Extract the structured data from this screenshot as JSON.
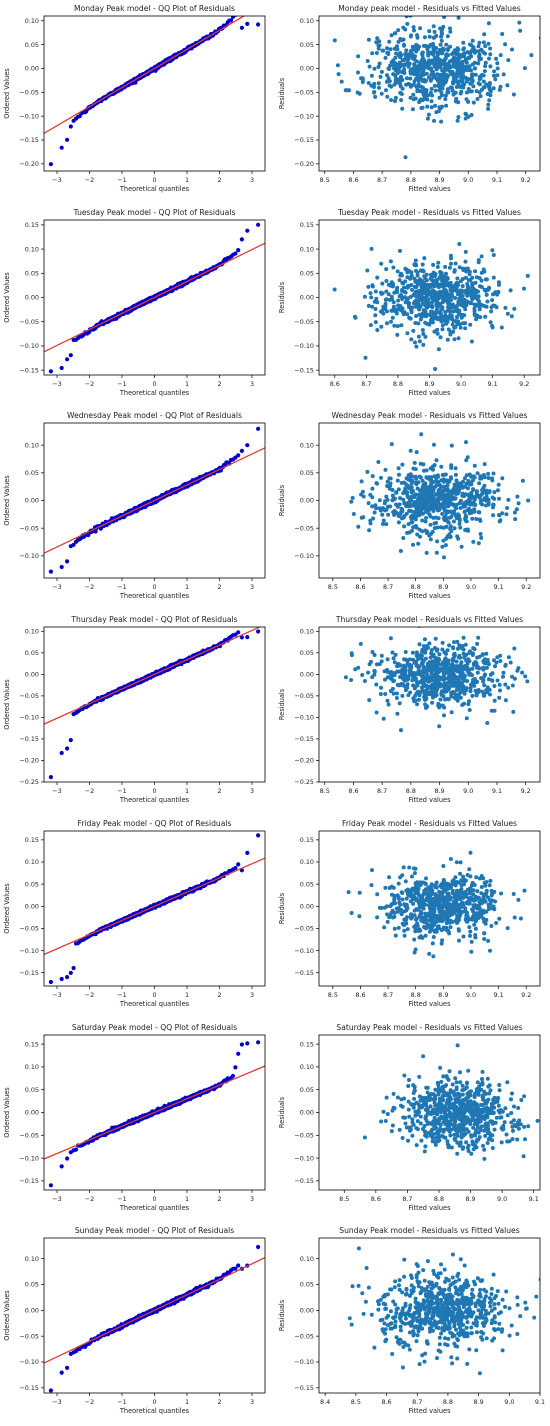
{
  "colors": {
    "qq_points": "#0000cc",
    "qq_line": "#e03c31",
    "scatter_points": "#1f77b4",
    "axis": "#000000"
  },
  "chart_data": [
    {
      "type": "scatter",
      "title": "Monday Peak model - QQ Plot of Residuals",
      "xlabel": "Theoretical quantiles",
      "ylabel": "Ordered Values",
      "xlim": [
        -3.4,
        3.4
      ],
      "ylim": [
        -0.215,
        0.11
      ],
      "xticks": [
        -3,
        -2,
        -1,
        0,
        1,
        2,
        3
      ],
      "yticks": [
        -0.2,
        -0.15,
        -0.1,
        -0.05,
        0.0,
        0.05,
        0.1
      ],
      "xtick_labels": [
        "−3",
        "−2",
        "−1",
        "0",
        "1",
        "2",
        "3"
      ],
      "ytick_labels": [
        "−0.20",
        "−0.15",
        "−0.10",
        "−0.05",
        "0.00",
        "0.05",
        "0.10"
      ],
      "line": {
        "intercept": 0.0,
        "slope": 0.04
      },
      "points_count": 700,
      "std": 0.04,
      "tails": [
        -0.205,
        -0.165,
        -0.15,
        -0.12,
        -0.11,
        0.088,
        0.09,
        0.091
      ]
    },
    {
      "type": "scatter",
      "title": "Monday peak model - Residuals vs Fitted Values",
      "xlabel": "Fitted values",
      "ylabel": "Residuals",
      "xlim": [
        8.48,
        9.25
      ],
      "ylim": [
        -0.215,
        0.11
      ],
      "xticks": [
        8.5,
        8.6,
        8.7,
        8.8,
        8.9,
        9.0,
        9.1,
        9.2
      ],
      "yticks": [
        -0.2,
        -0.15,
        -0.1,
        -0.05,
        0.0,
        0.05,
        0.1
      ],
      "xtick_labels": [
        "8.5",
        "8.6",
        "8.7",
        "8.8",
        "8.9",
        "9.0",
        "9.1",
        "9.2"
      ],
      "ytick_labels": [
        "−0.20",
        "−0.15",
        "−0.10",
        "−0.05",
        "0.00",
        "0.05",
        "0.10"
      ],
      "points_count": 700,
      "x_center": 8.88,
      "x_spread": 0.12,
      "std": 0.04
    },
    {
      "type": "scatter",
      "title": "Tuesday Peak model - QQ Plot of Residuals",
      "xlabel": "Theoretical quantiles",
      "ylabel": "Ordered Values",
      "xlim": [
        -3.4,
        3.4
      ],
      "ylim": [
        -0.16,
        0.16
      ],
      "xticks": [
        -3,
        -2,
        -1,
        0,
        1,
        2,
        3
      ],
      "yticks": [
        -0.15,
        -0.1,
        -0.05,
        0.0,
        0.05,
        0.1,
        0.15
      ],
      "xtick_labels": [
        "−3",
        "−2",
        "−1",
        "0",
        "1",
        "2",
        "3"
      ],
      "ytick_labels": [
        "−0.15",
        "−0.10",
        "−0.05",
        "0.00",
        "0.05",
        "0.10",
        "0.15"
      ],
      "line": {
        "intercept": 0.0,
        "slope": 0.033
      },
      "points_count": 700,
      "std": 0.033,
      "tails": [
        -0.15,
        -0.145,
        -0.13,
        -0.12,
        0.1,
        0.12,
        0.135,
        0.15
      ]
    },
    {
      "type": "scatter",
      "title": "Tuesday Peak model - Residuals vs Fitted Values",
      "xlabel": "Fitted values",
      "ylabel": "Residuals",
      "xlim": [
        8.55,
        9.25
      ],
      "ylim": [
        -0.16,
        0.16
      ],
      "xticks": [
        8.6,
        8.7,
        8.8,
        8.9,
        9.0,
        9.1,
        9.2
      ],
      "yticks": [
        -0.15,
        -0.1,
        -0.05,
        0.0,
        0.05,
        0.1,
        0.15
      ],
      "xtick_labels": [
        "8.6",
        "8.7",
        "8.8",
        "8.9",
        "9.0",
        "9.1",
        "9.2"
      ],
      "ytick_labels": [
        "−0.15",
        "−0.10",
        "−0.05",
        "0.00",
        "0.05",
        "0.10",
        "0.15"
      ],
      "points_count": 700,
      "x_center": 8.92,
      "x_spread": 0.1,
      "std": 0.035
    },
    {
      "type": "scatter",
      "title": "Wednesday Peak model - QQ Plot of Residuals",
      "xlabel": "Theoretical quantiles",
      "ylabel": "Ordered Values",
      "xlim": [
        -3.4,
        3.4
      ],
      "ylim": [
        -0.14,
        0.14
      ],
      "xticks": [
        -3,
        -2,
        -1,
        0,
        1,
        2,
        3
      ],
      "yticks": [
        -0.1,
        -0.05,
        0.0,
        0.05,
        0.1
      ],
      "xtick_labels": [
        "−3",
        "−2",
        "−1",
        "0",
        "1",
        "2",
        "3"
      ],
      "ytick_labels": [
        "−0.10",
        "−0.05",
        "0.00",
        "0.05",
        "0.10"
      ],
      "line": {
        "intercept": 0.0,
        "slope": 0.028
      },
      "points_count": 700,
      "std": 0.028,
      "tails": [
        -0.13,
        -0.12,
        -0.11,
        0.09,
        0.1,
        0.13
      ]
    },
    {
      "type": "scatter",
      "title": "Wednesday Peak model - Residuals vs Fitted Values",
      "xlabel": "Fitted values",
      "ylabel": "Residuals",
      "xlim": [
        8.45,
        9.25
      ],
      "ylim": [
        -0.14,
        0.14
      ],
      "xticks": [
        8.5,
        8.6,
        8.7,
        8.8,
        8.9,
        9.0,
        9.1,
        9.2
      ],
      "yticks": [
        -0.1,
        -0.05,
        0.0,
        0.05,
        0.1
      ],
      "xtick_labels": [
        "8.5",
        "8.6",
        "8.7",
        "8.8",
        "8.9",
        "9.0",
        "9.1",
        "9.2"
      ],
      "ytick_labels": [
        "−0.10",
        "−0.05",
        "0.00",
        "0.05",
        "0.10"
      ],
      "points_count": 700,
      "x_center": 8.88,
      "x_spread": 0.11,
      "std": 0.03
    },
    {
      "type": "scatter",
      "title": "Thursday Peak model - QQ Plot of Residuals",
      "xlabel": "Theoretical quantiles",
      "ylabel": "Ordered Values",
      "xlim": [
        -3.4,
        3.4
      ],
      "ylim": [
        -0.25,
        0.11
      ],
      "xticks": [
        -3,
        -2,
        -1,
        0,
        1,
        2,
        3
      ],
      "yticks": [
        -0.25,
        -0.2,
        -0.15,
        -0.1,
        -0.05,
        0.0,
        0.05,
        0.1
      ],
      "xtick_labels": [
        "−3",
        "−2",
        "−1",
        "0",
        "1",
        "2",
        "3"
      ],
      "ytick_labels": [
        "−0.25",
        "−0.20",
        "−0.15",
        "−0.10",
        "−0.05",
        "0.00",
        "0.05",
        "0.10"
      ],
      "line": {
        "intercept": 0.0,
        "slope": 0.034
      },
      "points_count": 700,
      "std": 0.034,
      "tails": [
        -0.24,
        -0.18,
        -0.17,
        -0.15,
        0.085,
        0.09,
        0.1
      ]
    },
    {
      "type": "scatter",
      "title": "Thursday Peak model - Residuals vs Fitted Values",
      "xlabel": "Fitted values",
      "ylabel": "Residuals",
      "xlim": [
        8.48,
        9.25
      ],
      "ylim": [
        -0.25,
        0.11
      ],
      "xticks": [
        8.5,
        8.6,
        8.7,
        8.8,
        8.9,
        9.0,
        9.1,
        9.2
      ],
      "yticks": [
        -0.25,
        -0.2,
        -0.15,
        -0.1,
        -0.05,
        0.0,
        0.05,
        0.1
      ],
      "xtick_labels": [
        "8.5",
        "8.6",
        "8.7",
        "8.8",
        "8.9",
        "9.0",
        "9.1",
        "9.2"
      ],
      "ytick_labels": [
        "−0.25",
        "−0.20",
        "−0.15",
        "−0.10",
        "−0.05",
        "0.00",
        "0.05",
        "0.10"
      ],
      "points_count": 700,
      "x_center": 8.9,
      "x_spread": 0.11,
      "std": 0.035
    },
    {
      "type": "scatter",
      "title": "Friday Peak model - QQ Plot of Residuals",
      "xlabel": "Theoretical quantiles",
      "ylabel": "Ordered Values",
      "xlim": [
        -3.4,
        3.4
      ],
      "ylim": [
        -0.18,
        0.17
      ],
      "xticks": [
        -3,
        -2,
        -1,
        0,
        1,
        2,
        3
      ],
      "yticks": [
        -0.15,
        -0.1,
        -0.05,
        0.0,
        0.05,
        0.1,
        0.15
      ],
      "xtick_labels": [
        "−3",
        "−2",
        "−1",
        "0",
        "1",
        "2",
        "3"
      ],
      "ytick_labels": [
        "−0.15",
        "−0.10",
        "−0.05",
        "0.00",
        "0.05",
        "0.10",
        "0.15"
      ],
      "line": {
        "intercept": 0.0,
        "slope": 0.032
      },
      "points_count": 700,
      "std": 0.032,
      "tails": [
        -0.17,
        -0.165,
        -0.16,
        -0.15,
        -0.14,
        0.08,
        0.12,
        0.16
      ]
    },
    {
      "type": "scatter",
      "title": "Friday Peak model - Residuals vs Fitted Values",
      "xlabel": "Fitted values",
      "ylabel": "Residuals",
      "xlim": [
        8.45,
        9.25
      ],
      "ylim": [
        -0.18,
        0.17
      ],
      "xticks": [
        8.5,
        8.6,
        8.7,
        8.8,
        8.9,
        9.0,
        9.1,
        9.2
      ],
      "yticks": [
        -0.15,
        -0.1,
        -0.05,
        0.0,
        0.05,
        0.1,
        0.15
      ],
      "xtick_labels": [
        "8.5",
        "8.6",
        "8.7",
        "8.8",
        "8.9",
        "9.0",
        "9.1",
        "9.2"
      ],
      "ytick_labels": [
        "−0.15",
        "−0.10",
        "−0.05",
        "0.00",
        "0.05",
        "0.10",
        "0.15"
      ],
      "points_count": 700,
      "x_center": 8.9,
      "x_spread": 0.1,
      "std": 0.035
    },
    {
      "type": "scatter",
      "title": "Saturday Peak model - QQ Plot of Residuals",
      "xlabel": "Theoretical quantiles",
      "ylabel": "Ordered Values",
      "xlim": [
        -3.4,
        3.4
      ],
      "ylim": [
        -0.17,
        0.17
      ],
      "xticks": [
        -3,
        -2,
        -1,
        0,
        1,
        2,
        3
      ],
      "yticks": [
        -0.15,
        -0.1,
        -0.05,
        0.0,
        0.05,
        0.1,
        0.15
      ],
      "xtick_labels": [
        "−3",
        "−2",
        "−1",
        "0",
        "1",
        "2",
        "3"
      ],
      "ytick_labels": [
        "−0.15",
        "−0.10",
        "−0.05",
        "0.00",
        "0.05",
        "0.10",
        "0.15"
      ],
      "line": {
        "intercept": 0.0,
        "slope": 0.03
      },
      "points_count": 700,
      "std": 0.03,
      "tails": [
        -0.16,
        -0.12,
        -0.1,
        0.1,
        0.13,
        0.15,
        0.155,
        0.155
      ]
    },
    {
      "type": "scatter",
      "title": "Saturday Peak model - Residuals vs Fitted Values",
      "xlabel": "Fitted values",
      "ylabel": "Residuals",
      "xlim": [
        8.42,
        9.12
      ],
      "ylim": [
        -0.17,
        0.17
      ],
      "xticks": [
        8.5,
        8.6,
        8.7,
        8.8,
        8.9,
        9.0,
        9.1
      ],
      "yticks": [
        -0.15,
        -0.1,
        -0.05,
        0.0,
        0.05,
        0.1,
        0.15
      ],
      "xtick_labels": [
        "8.5",
        "8.6",
        "8.7",
        "8.8",
        "8.9",
        "9.0",
        "9.1"
      ],
      "ytick_labels": [
        "−0.15",
        "−0.10",
        "−0.05",
        "0.00",
        "0.05",
        "0.10",
        "0.15"
      ],
      "points_count": 700,
      "x_center": 8.86,
      "x_spread": 0.09,
      "std": 0.035
    },
    {
      "type": "scatter",
      "title": "Sunday Peak model - QQ Plot of Residuals",
      "xlabel": "Theoretical quantiles",
      "ylabel": "Ordered Values",
      "xlim": [
        -3.4,
        3.4
      ],
      "ylim": [
        -0.16,
        0.14
      ],
      "xticks": [
        -3,
        -2,
        -1,
        0,
        1,
        2,
        3
      ],
      "yticks": [
        -0.15,
        -0.1,
        -0.05,
        0.0,
        0.05,
        0.1
      ],
      "xtick_labels": [
        "−3",
        "−2",
        "−1",
        "0",
        "1",
        "2",
        "3"
      ],
      "ytick_labels": [
        "−0.15",
        "−0.10",
        "−0.05",
        "0.00",
        "0.05",
        "0.10"
      ],
      "line": {
        "intercept": 0.0,
        "slope": 0.03
      },
      "points_count": 700,
      "std": 0.03,
      "tails": [
        -0.155,
        -0.12,
        -0.11,
        0.08,
        0.085,
        0.125
      ]
    },
    {
      "type": "scatter",
      "title": "Sunday Peak model - Residuals vs Fitted Values",
      "xlabel": "Fitted values",
      "ylabel": "Residuals",
      "xlim": [
        8.38,
        9.1
      ],
      "ylim": [
        -0.16,
        0.14
      ],
      "xticks": [
        8.4,
        8.5,
        8.6,
        8.7,
        8.8,
        8.9,
        9.0,
        9.1
      ],
      "yticks": [
        -0.15,
        -0.1,
        -0.05,
        0.0,
        0.05,
        0.1
      ],
      "xtick_labels": [
        "8.4",
        "8.5",
        "8.6",
        "8.7",
        "8.8",
        "8.9",
        "9.0",
        "9.1"
      ],
      "ytick_labels": [
        "−0.15",
        "−0.10",
        "−0.05",
        "0.00",
        "0.05",
        "0.10"
      ],
      "points_count": 700,
      "x_center": 8.78,
      "x_spread": 0.1,
      "std": 0.035
    }
  ]
}
